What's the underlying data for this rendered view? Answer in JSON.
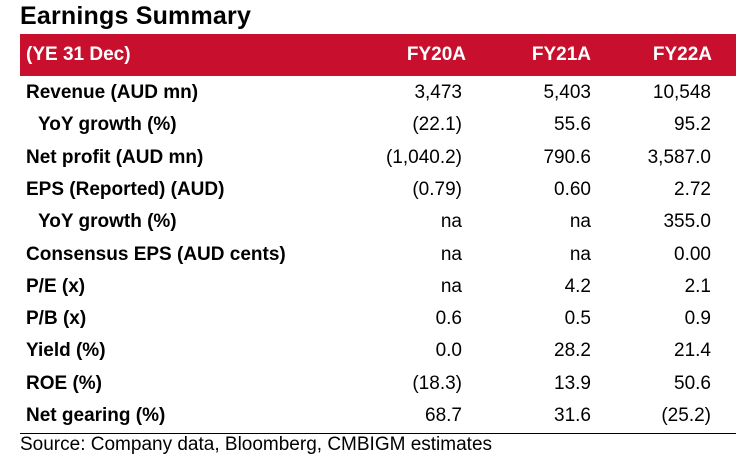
{
  "title": "Earnings Summary",
  "header": {
    "label": "(YE 31 Dec)",
    "cols": [
      "FY20A",
      "FY21A",
      "FY22A"
    ]
  },
  "rows": [
    {
      "label": "Revenue (AUD mn)",
      "indent": false,
      "values": [
        "3,473",
        "5,403",
        "10,548"
      ]
    },
    {
      "label": "YoY growth (%)",
      "indent": true,
      "values": [
        "(22.1)",
        "55.6",
        "95.2"
      ]
    },
    {
      "label": "Net profit (AUD mn)",
      "indent": false,
      "values": [
        "(1,040.2)",
        "790.6",
        "3,587.0"
      ]
    },
    {
      "label": "EPS (Reported) (AUD)",
      "indent": false,
      "values": [
        "(0.79)",
        "0.60",
        "2.72"
      ]
    },
    {
      "label": "YoY growth (%)",
      "indent": true,
      "values": [
        "na",
        "na",
        "355.0"
      ]
    },
    {
      "label": "Consensus EPS (AUD cents)",
      "indent": false,
      "values": [
        "na",
        "na",
        "0.00"
      ]
    },
    {
      "label": "P/E (x)",
      "indent": false,
      "values": [
        "na",
        "4.2",
        "2.1"
      ]
    },
    {
      "label": "P/B (x)",
      "indent": false,
      "values": [
        "0.6",
        "0.5",
        "0.9"
      ]
    },
    {
      "label": "Yield (%)",
      "indent": false,
      "values": [
        "0.0",
        "28.2",
        "21.4"
      ]
    },
    {
      "label": "ROE (%)",
      "indent": false,
      "values": [
        "(18.3)",
        "13.9",
        "50.6"
      ]
    },
    {
      "label": "Net gearing (%)",
      "indent": false,
      "values": [
        "68.7",
        "31.6",
        "(25.2)"
      ]
    }
  ],
  "source": "Source: Company data, Bloomberg, CMBIGM estimates",
  "colors": {
    "header_bg": "#c8102e",
    "header_text": "#ffffff"
  }
}
